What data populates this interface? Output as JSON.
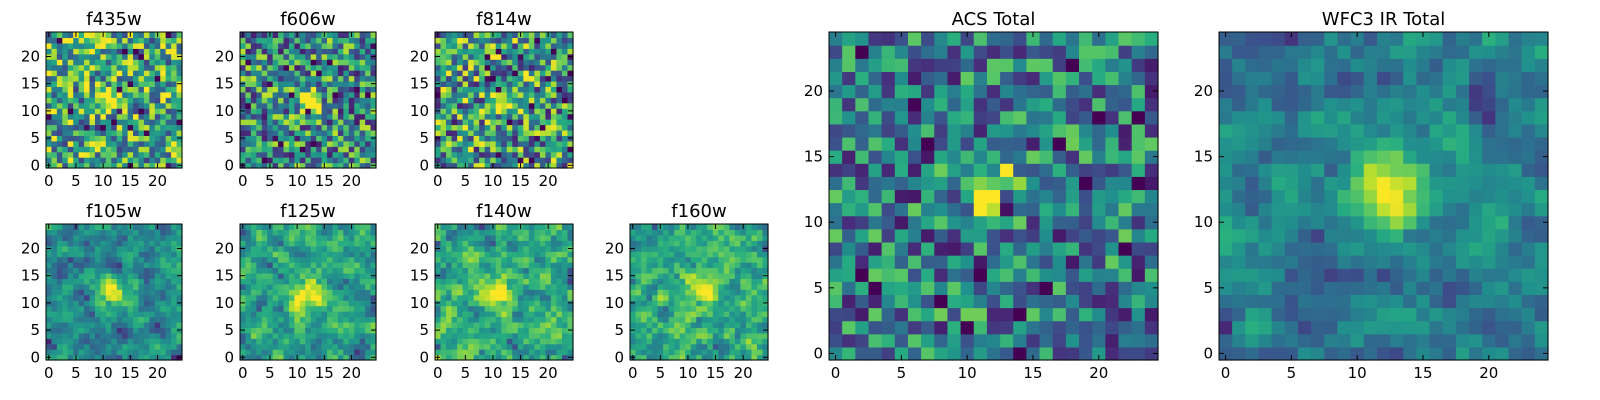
{
  "figure": {
    "description_free": true
  },
  "colors": {
    "background": "#ffffff",
    "axes_frame": "#000000",
    "colormap": "viridis",
    "colormap_low": "#440154",
    "colormap_high": "#fde725"
  },
  "chart_data": [
    {
      "type": "heatmap",
      "title": "f435w",
      "grid_size": 25,
      "x_ticks": [
        "0",
        "5",
        "10",
        "15",
        "20"
      ],
      "y_ticks": [
        "0",
        "5",
        "10",
        "15",
        "20"
      ],
      "xlim": [
        -0.5,
        24.5
      ],
      "ylim": [
        -0.5,
        24.5
      ],
      "source_center": [
        11.5,
        12
      ],
      "source_sigma": 1.6,
      "source_peak": 0.55,
      "background_level": 0.62,
      "noise_level": 0.42,
      "smoothing": 0,
      "seed": 11
    },
    {
      "type": "heatmap",
      "title": "f606w",
      "grid_size": 25,
      "x_ticks": [
        "0",
        "5",
        "10",
        "15",
        "20"
      ],
      "y_ticks": [
        "0",
        "5",
        "10",
        "15",
        "20"
      ],
      "xlim": [
        -0.5,
        24.5
      ],
      "ylim": [
        -0.5,
        24.5
      ],
      "source_center": [
        12,
        12
      ],
      "source_sigma": 1.5,
      "source_peak": 0.6,
      "background_level": 0.5,
      "noise_level": 0.42,
      "smoothing": 0,
      "seed": 23
    },
    {
      "type": "heatmap",
      "title": "f814w",
      "grid_size": 25,
      "x_ticks": [
        "0",
        "5",
        "10",
        "15",
        "20"
      ],
      "y_ticks": [
        "0",
        "5",
        "10",
        "15",
        "20"
      ],
      "xlim": [
        -0.5,
        24.5
      ],
      "ylim": [
        -0.5,
        24.5
      ],
      "source_center": [
        12,
        12
      ],
      "source_sigma": 1.4,
      "source_peak": 0.55,
      "background_level": 0.55,
      "noise_level": 0.45,
      "smoothing": 0,
      "seed": 37
    },
    {
      "type": "heatmap",
      "title": "f105w",
      "grid_size": 25,
      "x_ticks": [
        "0",
        "5",
        "10",
        "15",
        "20"
      ],
      "y_ticks": [
        "0",
        "5",
        "10",
        "15",
        "20"
      ],
      "xlim": [
        -0.5,
        24.5
      ],
      "ylim": [
        -0.5,
        24.5
      ],
      "source_center": [
        11.5,
        12
      ],
      "source_sigma": 1.9,
      "source_peak": 0.6,
      "background_level": 0.48,
      "noise_level": 0.38,
      "smoothing": 0.45,
      "seed": 41
    },
    {
      "type": "heatmap",
      "title": "f125w",
      "grid_size": 25,
      "x_ticks": [
        "0",
        "5",
        "10",
        "15",
        "20"
      ],
      "y_ticks": [
        "0",
        "5",
        "10",
        "15",
        "20"
      ],
      "xlim": [
        -0.5,
        24.5
      ],
      "ylim": [
        -0.5,
        24.5
      ],
      "source_center": [
        12,
        12
      ],
      "source_sigma": 2.2,
      "source_peak": 0.45,
      "background_level": 0.6,
      "noise_level": 0.4,
      "smoothing": 0.45,
      "seed": 53
    },
    {
      "type": "heatmap",
      "title": "f140w",
      "grid_size": 25,
      "x_ticks": [
        "0",
        "5",
        "10",
        "15",
        "20"
      ],
      "y_ticks": [
        "0",
        "5",
        "10",
        "15",
        "20"
      ],
      "xlim": [
        -0.5,
        24.5
      ],
      "ylim": [
        -0.5,
        24.5
      ],
      "source_center": [
        12,
        12
      ],
      "source_sigma": 2.1,
      "source_peak": 0.45,
      "background_level": 0.62,
      "noise_level": 0.42,
      "smoothing": 0.4,
      "seed": 67
    },
    {
      "type": "heatmap",
      "title": "f160w",
      "grid_size": 25,
      "x_ticks": [
        "0",
        "5",
        "10",
        "15",
        "20"
      ],
      "y_ticks": [
        "0",
        "5",
        "10",
        "15",
        "20"
      ],
      "xlim": [
        -0.5,
        24.5
      ],
      "ylim": [
        -0.5,
        24.5
      ],
      "source_center": [
        12.5,
        12.5
      ],
      "source_sigma": 2.0,
      "source_peak": 0.5,
      "background_level": 0.63,
      "noise_level": 0.4,
      "smoothing": 0.4,
      "seed": 79
    },
    {
      "type": "heatmap",
      "title": "ACS Total",
      "grid_size": 25,
      "x_ticks": [
        "0",
        "5",
        "10",
        "15",
        "20"
      ],
      "y_ticks": [
        "0",
        "5",
        "10",
        "15",
        "20"
      ],
      "xlim": [
        -0.5,
        24.5
      ],
      "ylim": [
        -0.5,
        24.5
      ],
      "source_center": [
        12,
        12.5
      ],
      "source_sigma": 1.5,
      "source_peak": 0.65,
      "background_level": 0.42,
      "noise_level": 0.36,
      "smoothing": 0,
      "seed": 97
    },
    {
      "type": "heatmap",
      "title": "WFC3 IR Total",
      "grid_size": 25,
      "x_ticks": [
        "0",
        "5",
        "10",
        "15",
        "20"
      ],
      "y_ticks": [
        "0",
        "5",
        "10",
        "15",
        "20"
      ],
      "xlim": [
        -0.5,
        24.5
      ],
      "ylim": [
        -0.5,
        24.5
      ],
      "source_center": [
        12,
        12.5
      ],
      "source_sigma": 2.3,
      "source_peak": 0.6,
      "background_level": 0.45,
      "noise_level": 0.34,
      "smoothing": 0.45,
      "seed": 131
    }
  ]
}
